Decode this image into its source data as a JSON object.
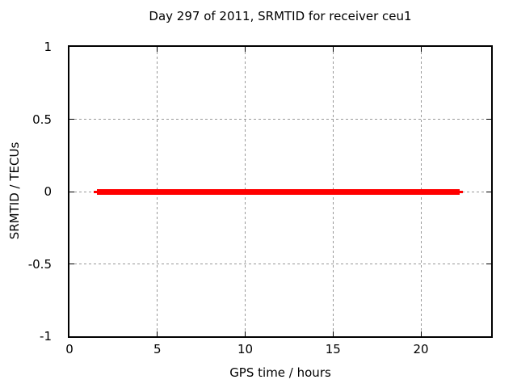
{
  "figure": {
    "background": "#ffffff",
    "text_color": "#000000"
  },
  "chart_data": {
    "type": "line",
    "title": "Day 297 of 2011, SRMTID for receiver ceu1",
    "xlabel": "GPS time / hours",
    "ylabel": "SRMTID / TECUs",
    "xlim": [
      0,
      24
    ],
    "ylim": [
      -1,
      1
    ],
    "xticks": [
      0,
      5,
      10,
      15,
      20
    ],
    "yticks": [
      -1,
      -0.5,
      0,
      0.5,
      1
    ],
    "grid": "dashed",
    "grid_color": "#999999",
    "border_color": "#000000",
    "legend": "none",
    "series": [
      {
        "name": "SRMTID",
        "color": "#ff0000",
        "shape": "constant horizontal line",
        "y": 0,
        "x_start": 1.4,
        "x_end": 22.4,
        "points": [
          {
            "x": 1.4,
            "y": 0
          },
          {
            "x": 22.4,
            "y": 0
          }
        ],
        "band": {
          "x_start": 1.55,
          "x_end": 22.2,
          "thickness_px": 7
        },
        "tip_thickness_px": 3
      }
    ]
  }
}
